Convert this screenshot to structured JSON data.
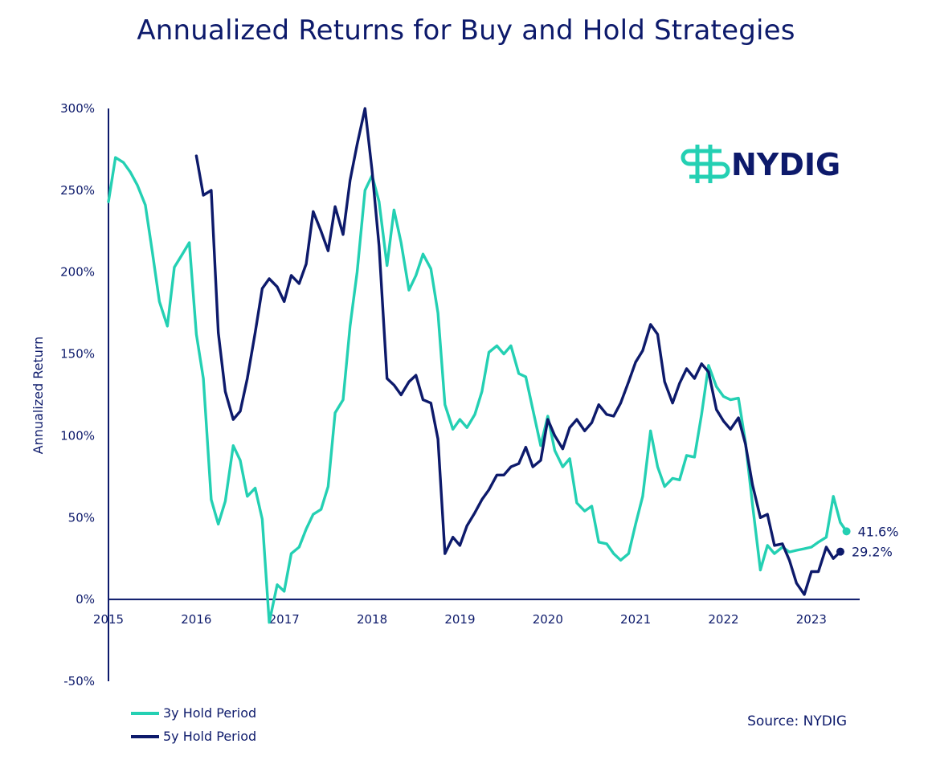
{
  "colors": {
    "series_3y": "#24d0b3",
    "series_5y": "#0d1a6b",
    "axis": "#0d1a6b",
    "text": "#0d1a6b",
    "logo_mark": "#24d0b3"
  },
  "logo": {
    "text": "NYDIG",
    "icon": "nydig-logo-icon"
  },
  "source": "Source: NYDIG",
  "chart_data": {
    "type": "line",
    "title": "Annualized Returns for Buy and Hold Strategies",
    "xlabel": "",
    "ylabel": "Annualized Return",
    "xlim": [
      2015.0,
      2023.55
    ],
    "ylim": [
      -50,
      300
    ],
    "x_ticks": [
      2015,
      2016,
      2017,
      2018,
      2019,
      2020,
      2021,
      2022,
      2023
    ],
    "x_tick_labels": [
      "2015",
      "2016",
      "2017",
      "2018",
      "2019",
      "2020",
      "2021",
      "2022",
      "2023"
    ],
    "y_ticks": [
      300,
      250,
      200,
      150,
      100,
      50,
      0,
      -50
    ],
    "y_tick_labels": [
      "300%",
      "250%",
      "200%",
      "150%",
      "100%",
      "50%",
      "0%",
      "-50%"
    ],
    "grid": false,
    "legend_position": "bottom-left",
    "series": [
      {
        "name": "3y Hold Period",
        "end_label": "41.6%",
        "points": [
          [
            2015.0,
            243
          ],
          [
            2015.08,
            270
          ],
          [
            2015.17,
            267
          ],
          [
            2015.25,
            261
          ],
          [
            2015.33,
            253
          ],
          [
            2015.42,
            241
          ],
          [
            2015.5,
            212
          ],
          [
            2015.58,
            182
          ],
          [
            2015.67,
            167
          ],
          [
            2015.75,
            203
          ],
          [
            2015.83,
            210
          ],
          [
            2015.92,
            218
          ],
          [
            2016.0,
            162
          ],
          [
            2016.08,
            135
          ],
          [
            2016.17,
            61
          ],
          [
            2016.25,
            46
          ],
          [
            2016.33,
            60
          ],
          [
            2016.42,
            94
          ],
          [
            2016.5,
            85
          ],
          [
            2016.58,
            63
          ],
          [
            2016.67,
            68
          ],
          [
            2016.75,
            49
          ],
          [
            2016.83,
            -14
          ],
          [
            2016.92,
            9
          ],
          [
            2017.0,
            5
          ],
          [
            2017.08,
            28
          ],
          [
            2017.17,
            32
          ],
          [
            2017.25,
            43
          ],
          [
            2017.33,
            52
          ],
          [
            2017.42,
            55
          ],
          [
            2017.5,
            69
          ],
          [
            2017.58,
            114
          ],
          [
            2017.67,
            122
          ],
          [
            2017.75,
            167
          ],
          [
            2017.83,
            200
          ],
          [
            2017.92,
            250
          ],
          [
            2018.0,
            259
          ],
          [
            2018.08,
            243
          ],
          [
            2018.17,
            204
          ],
          [
            2018.25,
            238
          ],
          [
            2018.33,
            218
          ],
          [
            2018.42,
            189
          ],
          [
            2018.5,
            198
          ],
          [
            2018.58,
            211
          ],
          [
            2018.67,
            202
          ],
          [
            2018.75,
            175
          ],
          [
            2018.83,
            119
          ],
          [
            2018.92,
            104
          ],
          [
            2019.0,
            110
          ],
          [
            2019.08,
            105
          ],
          [
            2019.17,
            113
          ],
          [
            2019.25,
            127
          ],
          [
            2019.33,
            151
          ],
          [
            2019.42,
            155
          ],
          [
            2019.5,
            150
          ],
          [
            2019.58,
            155
          ],
          [
            2019.67,
            138
          ],
          [
            2019.75,
            136
          ],
          [
            2019.83,
            116
          ],
          [
            2019.92,
            94
          ],
          [
            2020.0,
            112
          ],
          [
            2020.08,
            91
          ],
          [
            2020.17,
            81
          ],
          [
            2020.25,
            86
          ],
          [
            2020.33,
            59
          ],
          [
            2020.42,
            54
          ],
          [
            2020.5,
            57
          ],
          [
            2020.58,
            35
          ],
          [
            2020.67,
            34
          ],
          [
            2020.75,
            28
          ],
          [
            2020.83,
            24
          ],
          [
            2020.92,
            28
          ],
          [
            2021.0,
            46
          ],
          [
            2021.08,
            63
          ],
          [
            2021.17,
            103
          ],
          [
            2021.25,
            81
          ],
          [
            2021.33,
            69
          ],
          [
            2021.42,
            74
          ],
          [
            2021.5,
            73
          ],
          [
            2021.58,
            88
          ],
          [
            2021.67,
            87
          ],
          [
            2021.75,
            113
          ],
          [
            2021.83,
            143
          ],
          [
            2021.92,
            130
          ],
          [
            2022.0,
            124
          ],
          [
            2022.08,
            122
          ],
          [
            2022.17,
            123
          ],
          [
            2022.25,
            96
          ],
          [
            2022.33,
            58
          ],
          [
            2022.42,
            18
          ],
          [
            2022.5,
            33
          ],
          [
            2022.58,
            28
          ],
          [
            2022.67,
            32
          ],
          [
            2022.75,
            29
          ],
          [
            2022.83,
            30
          ],
          [
            2022.92,
            31
          ],
          [
            2023.0,
            32
          ],
          [
            2023.08,
            35
          ],
          [
            2023.17,
            38
          ],
          [
            2023.25,
            63
          ],
          [
            2023.33,
            47
          ],
          [
            2023.4,
            41.6
          ]
        ]
      },
      {
        "name": "5y Hold Period",
        "end_label": "29.2%",
        "points": [
          [
            2016.0,
            271
          ],
          [
            2016.08,
            247
          ],
          [
            2016.17,
            250
          ],
          [
            2016.25,
            163
          ],
          [
            2016.33,
            127
          ],
          [
            2016.42,
            110
          ],
          [
            2016.5,
            115
          ],
          [
            2016.58,
            135
          ],
          [
            2016.67,
            163
          ],
          [
            2016.75,
            190
          ],
          [
            2016.83,
            196
          ],
          [
            2016.92,
            191
          ],
          [
            2017.0,
            182
          ],
          [
            2017.08,
            198
          ],
          [
            2017.17,
            193
          ],
          [
            2017.25,
            205
          ],
          [
            2017.33,
            237
          ],
          [
            2017.42,
            225
          ],
          [
            2017.5,
            213
          ],
          [
            2017.58,
            240
          ],
          [
            2017.67,
            223
          ],
          [
            2017.75,
            256
          ],
          [
            2017.83,
            278
          ],
          [
            2017.92,
            300
          ],
          [
            2018.0,
            262
          ],
          [
            2018.08,
            216
          ],
          [
            2018.17,
            135
          ],
          [
            2018.25,
            131
          ],
          [
            2018.33,
            125
          ],
          [
            2018.42,
            133
          ],
          [
            2018.5,
            137
          ],
          [
            2018.58,
            122
          ],
          [
            2018.67,
            120
          ],
          [
            2018.75,
            98
          ],
          [
            2018.83,
            28
          ],
          [
            2018.92,
            38
          ],
          [
            2019.0,
            33
          ],
          [
            2019.08,
            45
          ],
          [
            2019.17,
            53
          ],
          [
            2019.25,
            61
          ],
          [
            2019.33,
            67
          ],
          [
            2019.42,
            76
          ],
          [
            2019.5,
            76
          ],
          [
            2019.58,
            81
          ],
          [
            2019.67,
            83
          ],
          [
            2019.75,
            93
          ],
          [
            2019.83,
            81
          ],
          [
            2019.92,
            85
          ],
          [
            2020.0,
            110
          ],
          [
            2020.08,
            100
          ],
          [
            2020.17,
            92
          ],
          [
            2020.25,
            105
          ],
          [
            2020.33,
            110
          ],
          [
            2020.42,
            103
          ],
          [
            2020.5,
            108
          ],
          [
            2020.58,
            119
          ],
          [
            2020.67,
            113
          ],
          [
            2020.75,
            112
          ],
          [
            2020.83,
            120
          ],
          [
            2020.92,
            133
          ],
          [
            2021.0,
            145
          ],
          [
            2021.08,
            152
          ],
          [
            2021.17,
            168
          ],
          [
            2021.25,
            162
          ],
          [
            2021.33,
            133
          ],
          [
            2021.42,
            120
          ],
          [
            2021.5,
            132
          ],
          [
            2021.58,
            141
          ],
          [
            2021.67,
            135
          ],
          [
            2021.75,
            144
          ],
          [
            2021.83,
            139
          ],
          [
            2021.92,
            116
          ],
          [
            2022.0,
            109
          ],
          [
            2022.08,
            104
          ],
          [
            2022.17,
            111
          ],
          [
            2022.25,
            95
          ],
          [
            2022.33,
            70
          ],
          [
            2022.42,
            50
          ],
          [
            2022.5,
            52
          ],
          [
            2022.58,
            33
          ],
          [
            2022.67,
            34
          ],
          [
            2022.75,
            24
          ],
          [
            2022.83,
            10
          ],
          [
            2022.92,
            3
          ],
          [
            2023.0,
            17
          ],
          [
            2023.08,
            17
          ],
          [
            2023.17,
            32
          ],
          [
            2023.25,
            25
          ],
          [
            2023.33,
            29.2
          ]
        ]
      }
    ]
  }
}
